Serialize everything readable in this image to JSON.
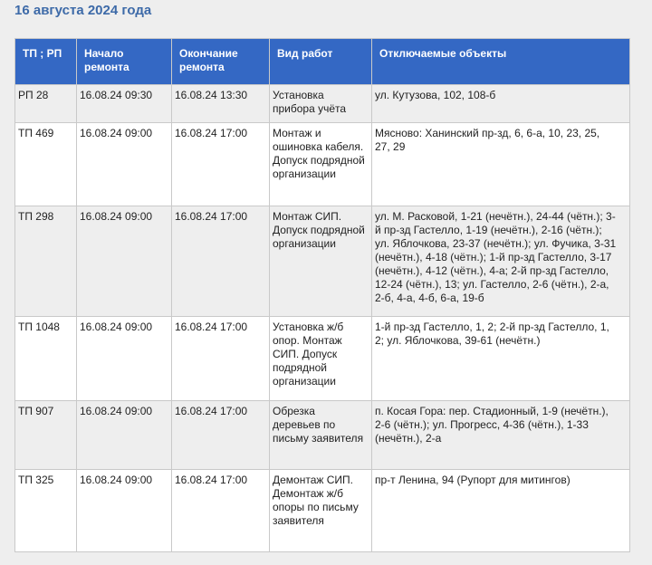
{
  "title": "16 августа 2024 года",
  "colors": {
    "header_bg": "#3468c4",
    "title": "#3d6aa8"
  },
  "table": {
    "headers": [
      "ТП ; РП",
      "Начало\nремонта",
      "Окончание\nремонта",
      "Вид работ",
      "Отключаемые объекты"
    ],
    "rows": [
      {
        "tp": "РП 28",
        "start": "16.08.24 09:30",
        "end": "16.08.24 13:30",
        "work": "Установка\nприбора учёта",
        "objects": "ул. Кутузова, 102, 108-б"
      },
      {
        "tp": "ТП 469",
        "start": "16.08.24 09:00",
        "end": "16.08.24 17:00",
        "work": "Монтаж и\nошиновка кабеля.\nДопуск подрядной\nорганизации",
        "objects": "Мясново: Ханинский пр-зд, 6, 6-а, 10, 23, 25,\n27, 29"
      },
      {
        "tp": "ТП 298",
        "start": "16.08.24 09:00",
        "end": "16.08.24 17:00",
        "work": "Монтаж СИП.\nДопуск подрядной\nорганизации",
        "objects": "ул. М. Расковой, 1-21 (нечётн.), 24-44 (чётн.); 3-\nй пр-зд Гастелло, 1-19 (нечётн.), 2-16 (чётн.);\nул. Яблочкова, 23-37 (нечётн.); ул. Фучика, 3-31\n(нечётн.), 4-18 (чётн.); 1-й пр-зд Гастелло, 3-17\n(нечётн.), 4-12 (чётн.), 4-а; 2-й пр-зд Гастелло,\n12-24 (чётн.), 13; ул. Гастелло, 2-6 (чётн.), 2-а,\n2-б, 4-а, 4-б, 6-а, 19-б"
      },
      {
        "tp": "ТП 1048",
        "start": "16.08.24 09:00",
        "end": "16.08.24 17:00",
        "work": "Установка ж/б\nопор. Монтаж\nСИП. Допуск\nподрядной\nорганизации",
        "objects": "1-й пр-зд Гастелло, 1, 2; 2-й пр-зд Гастелло, 1,\n2; ул. Яблочкова, 39-61 (нечётн.)"
      },
      {
        "tp": "ТП 907",
        "start": "16.08.24 09:00",
        "end": "16.08.24 17:00",
        "work": "Обрезка\nдеревьев по\nписьму заявителя",
        "objects": "п. Косая Гора: пер. Стадионный, 1-9 (нечётн.),\n2-6 (чётн.); ул. Прогресс, 4-36 (чётн.), 1-33\n(нечётн.), 2-а"
      },
      {
        "tp": "ТП 325",
        "start": "16.08.24 09:00",
        "end": "16.08.24 17:00",
        "work": "Демонтаж СИП.\nДемонтаж ж/б\nопоры по письму\nзаявителя",
        "objects": "пр-т Ленина, 94 (Рупорт для митингов)"
      }
    ]
  }
}
